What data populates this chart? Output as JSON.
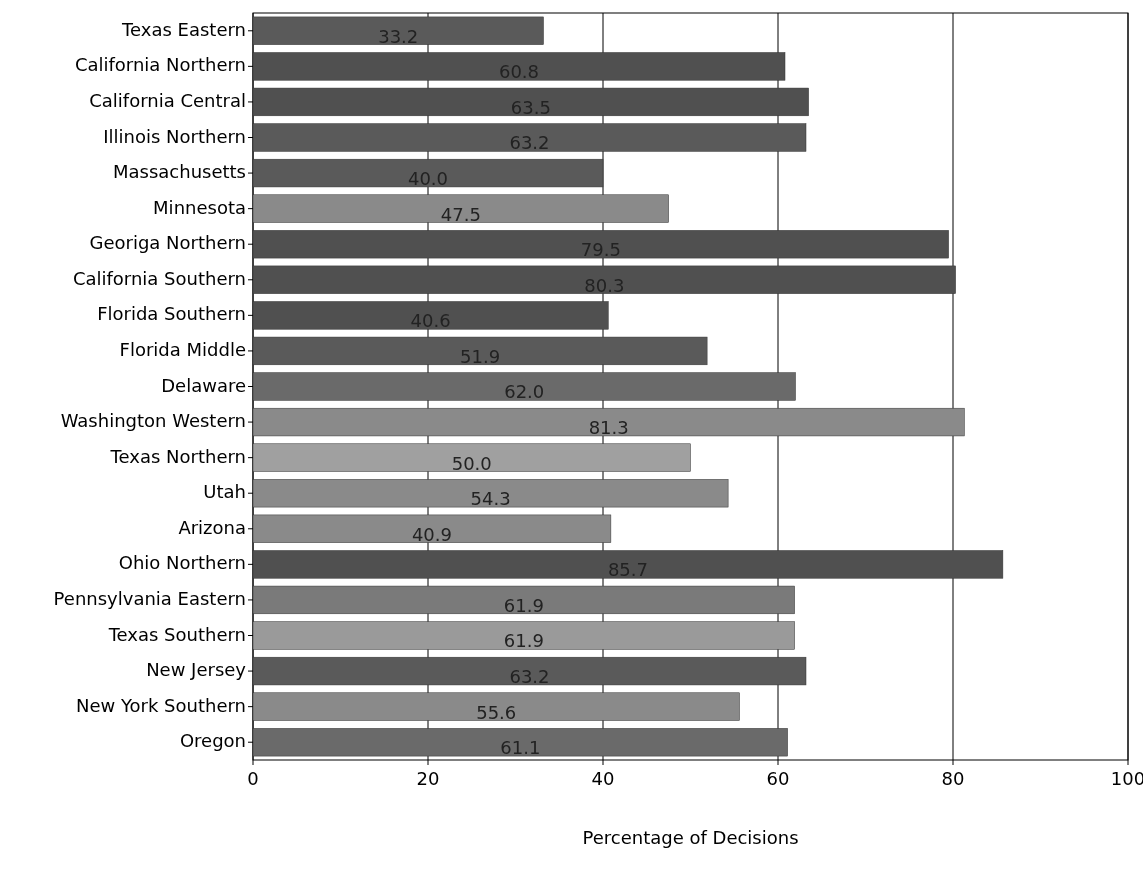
{
  "chart_data": {
    "type": "bar",
    "orientation": "horizontal",
    "xlabel": "Percentage of Decisions",
    "categories": [
      "Texas Eastern",
      "California Northern",
      "California Central",
      "Illinois Northern",
      "Massachusetts",
      "Minnesota",
      "Georiga Northern",
      "California Southern",
      "Florida Southern",
      "Florida Middle",
      "Delaware",
      "Washington Western",
      "Texas Northern",
      "Utah",
      "Arizona",
      "Ohio Northern",
      "Pennsylvania Eastern",
      "Texas Southern",
      "New Jersey",
      "New York Southern",
      "Oregon"
    ],
    "values": [
      33.2,
      60.8,
      63.5,
      63.2,
      40.0,
      47.5,
      79.5,
      80.3,
      40.6,
      51.9,
      62.0,
      81.3,
      50.0,
      54.3,
      40.9,
      85.7,
      61.9,
      61.9,
      63.2,
      55.6,
      61.1
    ],
    "value_labels": [
      "33.2",
      "60.8",
      "63.5",
      "63.2",
      "40.0",
      "47.5",
      "79.5",
      "80.3",
      "40.6",
      "51.9",
      "62.0",
      "81.3",
      "50.0",
      "54.3",
      "40.9",
      "85.7",
      "61.9",
      "61.9",
      "63.2",
      "55.6",
      "61.1"
    ],
    "colors": [
      "#5a5a5a",
      "#505050",
      "#505050",
      "#5a5a5a",
      "#5a5a5a",
      "#8a8a8a",
      "#505050",
      "#505050",
      "#505050",
      "#5a5a5a",
      "#6a6a6a",
      "#8a8a8a",
      "#a0a0a0",
      "#8a8a8a",
      "#8a8a8a",
      "#505050",
      "#7a7a7a",
      "#9a9a9a",
      "#5a5a5a",
      "#8a8a8a",
      "#6a6a6a"
    ],
    "xlim": [
      0,
      100
    ],
    "xticks": [
      0,
      20,
      40,
      60,
      80,
      100
    ],
    "grid": "x"
  }
}
